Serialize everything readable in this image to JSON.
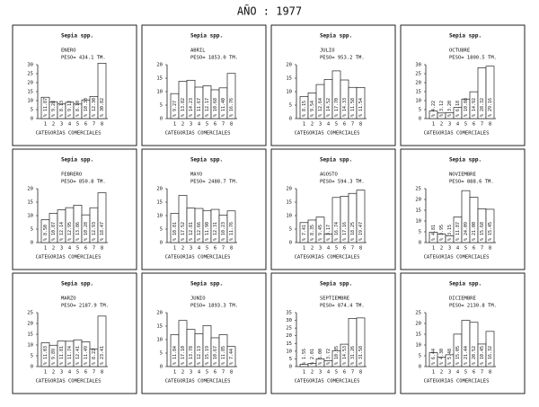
{
  "page_title": "AÑO : 1977",
  "chart_data": [
    {
      "type": "bar",
      "title": "Sepia spp.",
      "month": "ENERO",
      "weight": "PESO=   434.1 TM.",
      "xlabel": "CATEGORIAS COMERCIALES",
      "categories": [
        "1",
        "2",
        "3",
        "4",
        "5",
        "6",
        "7",
        "8"
      ],
      "values": [
        11.87,
        9.28,
        8.13,
        9.12,
        8.1,
        10.38,
        12.3,
        30.82
      ],
      "value_labels": [
        "% 11.87",
        "% 9.28",
        "% 8.13",
        "% 9.12",
        "% 8.10",
        "% 10.38",
        "% 12.30",
        "% 30.82"
      ],
      "ylim": [
        0,
        30
      ],
      "yticks": [
        0,
        5,
        10,
        15,
        20,
        25,
        30
      ],
      "color": "#ffffff"
    },
    {
      "type": "bar",
      "title": "Sepia spp.",
      "month": "ABRIL",
      "weight": "PESO=  1853.0 TM.",
      "xlabel": "CATEGORIAS COMERCIALES",
      "categories": [
        "1",
        "2",
        "3",
        "4",
        "5",
        "6",
        "7",
        "8"
      ],
      "values": [
        9.27,
        13.82,
        14.23,
        11.67,
        12.17,
        10.68,
        11.4,
        16.76
      ],
      "value_labels": [
        "% 9.27",
        "% 13.82",
        "% 14.23",
        "% 11.67",
        "% 12.17",
        "% 10.68",
        "% 11.40",
        "% 16.76"
      ],
      "ylim": [
        0,
        20
      ],
      "yticks": [
        0,
        5,
        10,
        15,
        20
      ],
      "color": "#ffffff"
    },
    {
      "type": "bar",
      "title": "Sepia spp.",
      "month": "JULIO",
      "weight": "PESO=   953.2 TM.",
      "xlabel": "CATEGORIAS COMERCIALES",
      "categories": [
        "1",
        "2",
        "3",
        "4",
        "5",
        "6",
        "7",
        "8"
      ],
      "values": [
        8.15,
        9.54,
        12.64,
        14.52,
        17.7,
        14.33,
        11.58,
        11.54
      ],
      "value_labels": [
        "% 8.15",
        "% 9.54",
        "% 12.64",
        "% 14.52",
        "% 17.70",
        "% 14.33",
        "% 11.58",
        "% 11.54"
      ],
      "ylim": [
        0,
        20
      ],
      "yticks": [
        0,
        5,
        10,
        15,
        20
      ],
      "color": "#ffffff"
    },
    {
      "type": "bar",
      "title": "Sepia spp.",
      "month": "OCTUBRE",
      "weight": "PESO=  1800.5 TM.",
      "xlabel": "CATEGORIAS COMERCIALES",
      "categories": [
        "1",
        "2",
        "3",
        "4",
        "5",
        "6",
        "7",
        "8"
      ],
      "values": [
        4.22,
        3.12,
        3.2,
        6.18,
        10.88,
        14.92,
        28.32,
        29.16
      ],
      "value_labels": [
        "% 4.22",
        "% 3.12",
        "% 3.20",
        "% 6.18",
        "% 10.88",
        "% 14.92",
        "% 28.32",
        "% 29.16"
      ],
      "ylim": [
        0,
        30
      ],
      "yticks": [
        0,
        5,
        10,
        15,
        20,
        25,
        30
      ],
      "color": "#ffffff"
    },
    {
      "type": "bar",
      "title": "Sepia spp.",
      "month": "FEBRERO",
      "weight": "PESO=   850.8 TM.",
      "xlabel": "CATEGORIAS COMERCIALES",
      "categories": [
        "1",
        "2",
        "3",
        "4",
        "5",
        "6",
        "7",
        "8"
      ],
      "values": [
        8.5,
        10.87,
        12.14,
        12.95,
        13.86,
        10.28,
        12.93,
        18.47
      ],
      "value_labels": [
        "% 8.50",
        "% 10.87",
        "% 12.14",
        "% 12.95",
        "% 13.86",
        "% 10.28",
        "% 12.93",
        "% 18.47"
      ],
      "ylim": [
        0,
        20
      ],
      "yticks": [
        0,
        5,
        10,
        15,
        20
      ],
      "color": "#ffffff"
    },
    {
      "type": "bar",
      "title": "Sepia spp.",
      "month": "MAYO",
      "weight": "PESO=  2488.7 TM.",
      "xlabel": "CATEGORIAS COMERCIALES",
      "categories": [
        "1",
        "2",
        "3",
        "4",
        "5",
        "6",
        "7",
        "8"
      ],
      "values": [
        10.81,
        17.52,
        12.81,
        12.66,
        11.9,
        12.31,
        10.23,
        11.76
      ],
      "value_labels": [
        "% 10.81",
        "% 17.52",
        "% 12.81",
        "% 12.66",
        "% 11.90",
        "% 12.31",
        "% 10.23",
        "% 11.76"
      ],
      "ylim": [
        0,
        20
      ],
      "yticks": [
        0,
        5,
        10,
        15,
        20
      ],
      "color": "#ffffff"
    },
    {
      "type": "bar",
      "title": "Sepia spp.",
      "month": "AGOSTO",
      "weight": "PESO=   594.3 TM.",
      "xlabel": "CATEGORIAS COMERCIALES",
      "categories": [
        "1",
        "2",
        "3",
        "4",
        "5",
        "6",
        "7",
        "8"
      ],
      "values": [
        7.41,
        8.35,
        9.45,
        3.17,
        16.74,
        17.16,
        18.25,
        19.47
      ],
      "value_labels": [
        "% 7.41",
        "% 8.35",
        "% 9.45",
        "% 3.17",
        "% 16.74",
        "% 17.16",
        "% 18.25",
        "% 19.47"
      ],
      "ylim": [
        0,
        20
      ],
      "yticks": [
        0,
        5,
        10,
        15,
        20
      ],
      "color": "#ffffff"
    },
    {
      "type": "bar",
      "title": "Sepia spp.",
      "month": "NOVIEMBRE",
      "weight": "PESO=   888.6 TM.",
      "xlabel": "CATEGORIAS COMERCIALES",
      "categories": [
        "1",
        "2",
        "3",
        "4",
        "5",
        "6",
        "7",
        "8"
      ],
      "values": [
        4.81,
        3.95,
        3.15,
        11.87,
        24.09,
        21.0,
        15.68,
        15.45
      ],
      "value_labels": [
        "% 4.81",
        "% 3.95",
        "% 3.15",
        "% 11.87",
        "% 24.09",
        "% 21.00",
        "% 15.68",
        "% 15.45"
      ],
      "ylim": [
        0,
        25
      ],
      "yticks": [
        0,
        5,
        10,
        15,
        20,
        25
      ],
      "color": "#ffffff"
    },
    {
      "type": "bar",
      "title": "Sepia spp.",
      "month": "MARZO",
      "weight": "PESO=  2187.9 TM.",
      "xlabel": "CATEGORIAS COMERCIALES",
      "categories": [
        "1",
        "2",
        "3",
        "4",
        "5",
        "6",
        "7",
        "8"
      ],
      "values": [
        11.03,
        9.89,
        11.81,
        11.74,
        12.41,
        11.49,
        8.22,
        23.41
      ],
      "value_labels": [
        "% 11.03",
        "% 9.89",
        "% 11.81",
        "% 11.74",
        "% 12.41",
        "% 11.49",
        "% 8.22",
        "% 23.41"
      ],
      "ylim": [
        0,
        25
      ],
      "yticks": [
        0,
        5,
        10,
        15,
        20,
        25
      ],
      "color": "#ffffff"
    },
    {
      "type": "bar",
      "title": "Sepia spp.",
      "month": "JUNIO",
      "weight": "PESO=  1893.3 TM.",
      "xlabel": "CATEGORIAS COMERCIALES",
      "categories": [
        "1",
        "2",
        "3",
        "4",
        "5",
        "6",
        "7",
        "8"
      ],
      "values": [
        11.84,
        17.1,
        13.78,
        12.13,
        15.19,
        10.67,
        11.85,
        7.44
      ],
      "value_labels": [
        "% 11.84",
        "% 17.10",
        "% 13.78",
        "% 12.13",
        "% 15.19",
        "% 10.67",
        "% 11.85",
        "% 7.44"
      ],
      "ylim": [
        0,
        20
      ],
      "yticks": [
        0,
        5,
        10,
        15,
        20
      ],
      "color": "#ffffff"
    },
    {
      "type": "bar",
      "title": "Sepia spp.",
      "month": "SEPTIEMBRE",
      "weight": "PESO=   874.4 TM.",
      "xlabel": "CATEGORIAS COMERCIALES",
      "categories": [
        "1",
        "2",
        "3",
        "4",
        "5",
        "6",
        "7",
        "8"
      ],
      "values": [
        1.55,
        2.01,
        5.0,
        3.72,
        10.35,
        14.53,
        31.26,
        31.58
      ],
      "value_labels": [
        "% 1.55",
        "% 2.01",
        "% 5.00",
        "% 3.72",
        "% 10.35",
        "% 14.53",
        "% 31.26",
        "% 31.58"
      ],
      "ylim": [
        0,
        35
      ],
      "yticks": [
        0,
        5,
        10,
        15,
        20,
        25,
        30,
        35
      ],
      "color": "#ffffff"
    },
    {
      "type": "bar",
      "title": "Sepia spp.",
      "month": "DICIEMBRE",
      "weight": "PESO=  2130.8 TM.",
      "xlabel": "CATEGORIAS COMERCIALES",
      "categories": [
        "1",
        "2",
        "3",
        "4",
        "5",
        "6",
        "7",
        "8"
      ],
      "values": [
        6.44,
        4.3,
        5.48,
        15.05,
        21.44,
        20.52,
        10.45,
        16.32
      ],
      "value_labels": [
        "% 6.44",
        "% 4.30",
        "% 5.48",
        "% 15.05",
        "% 21.44",
        "% 20.52",
        "% 10.45",
        "% 16.32"
      ],
      "ylim": [
        0,
        25
      ],
      "yticks": [
        0,
        5,
        10,
        15,
        20,
        25
      ],
      "color": "#ffffff"
    }
  ]
}
